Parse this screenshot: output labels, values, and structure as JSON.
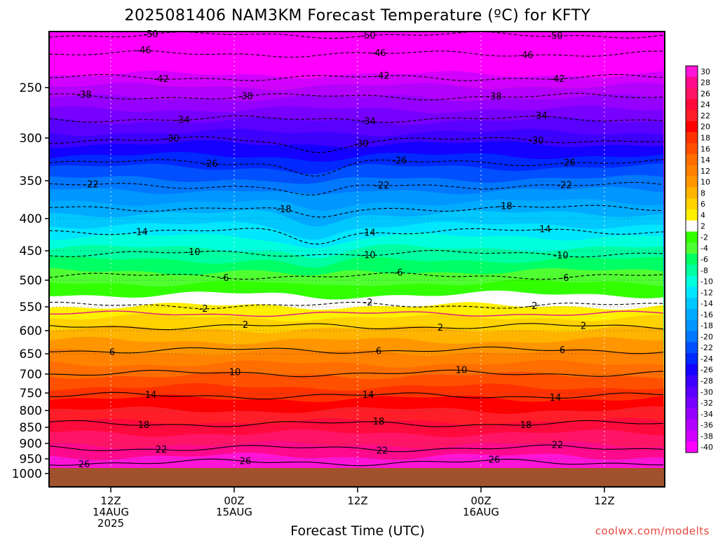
{
  "chart_data": {
    "type": "heatmap",
    "title": "2025081406 NAM3KM Forecast Temperature (ºC) for KFTY",
    "xlabel": "Forecast Time (UTC)",
    "ylabel": "",
    "credit": "coolwx.com/modelts",
    "y_ticks": [
      "250",
      "300",
      "350",
      "400",
      "450",
      "500",
      "550",
      "600",
      "650",
      "700",
      "750",
      "800",
      "850",
      "900",
      "950",
      "1000"
    ],
    "x_ticks": [
      {
        "label": "12Z",
        "day": "14AUG",
        "year": "2025"
      },
      {
        "label": "00Z",
        "day": "15AUG",
        "year": ""
      },
      {
        "label": "12Z",
        "day": "",
        "year": ""
      },
      {
        "label": "00Z",
        "day": "16AUG",
        "year": ""
      },
      {
        "label": "12Z",
        "day": "",
        "year": ""
      }
    ],
    "colorbar": [
      {
        "label": "30",
        "color": "#ff14d8"
      },
      {
        "label": "28",
        "color": "#ff0a8c"
      },
      {
        "label": "26",
        "color": "#ff1466"
      },
      {
        "label": "24",
        "color": "#ff0a3c"
      },
      {
        "label": "22",
        "color": "#ff1e28"
      },
      {
        "label": "20",
        "color": "#ff0000"
      },
      {
        "label": "18",
        "color": "#ff3200"
      },
      {
        "label": "16",
        "color": "#ff5000"
      },
      {
        "label": "14",
        "color": "#ff6e00"
      },
      {
        "label": "12",
        "color": "#ff8200"
      },
      {
        "label": "10",
        "color": "#ff9600"
      },
      {
        "label": "8",
        "color": "#ffb400"
      },
      {
        "label": "6",
        "color": "#ffd200"
      },
      {
        "label": "4",
        "color": "#fff000"
      },
      {
        "label": "2",
        "color": "#ffffff"
      },
      {
        "label": "-2",
        "color": "#32ff00"
      },
      {
        "label": "-4",
        "color": "#50ff32"
      },
      {
        "label": "-6",
        "color": "#00ff64"
      },
      {
        "label": "-8",
        "color": "#00ffa0"
      },
      {
        "label": "-10",
        "color": "#00ffdc"
      },
      {
        "label": "-12",
        "color": "#00e6ff"
      },
      {
        "label": "-14",
        "color": "#00c8ff"
      },
      {
        "label": "-16",
        "color": "#00aaff"
      },
      {
        "label": "-18",
        "color": "#0096ff"
      },
      {
        "label": "-20",
        "color": "#0078ff"
      },
      {
        "label": "-22",
        "color": "#0050ff"
      },
      {
        "label": "-24",
        "color": "#0028ff"
      },
      {
        "label": "-26",
        "color": "#1400ff"
      },
      {
        "label": "-28",
        "color": "#3c00ff"
      },
      {
        "label": "-30",
        "color": "#5a00ff"
      },
      {
        "label": "-32",
        "color": "#7800ff"
      },
      {
        "label": "-34",
        "color": "#9600ff"
      },
      {
        "label": "-36",
        "color": "#b400ff"
      },
      {
        "label": "-38",
        "color": "#d200ff"
      },
      {
        "label": "-40",
        "color": "#ff00ff"
      }
    ],
    "ground_color": "#a0522d",
    "contour_labels": [
      "-50",
      "-46",
      "-42",
      "-38",
      "-34",
      "-30",
      "-26",
      "-22",
      "-18",
      "-14",
      "-10",
      "-6",
      "-2",
      "2",
      "6",
      "10",
      "14",
      "18",
      "22",
      "26"
    ],
    "profile": {
      "pressure_hpa": [
        210,
        250,
        300,
        350,
        400,
        450,
        500,
        550,
        600,
        650,
        700,
        750,
        800,
        850,
        900,
        950,
        1000
      ],
      "temperature_c": [
        -50,
        -40,
        -31,
        -24,
        -17,
        -10,
        -5,
        0,
        3,
        7,
        10,
        13,
        16,
        19,
        22,
        25,
        27
      ]
    }
  }
}
